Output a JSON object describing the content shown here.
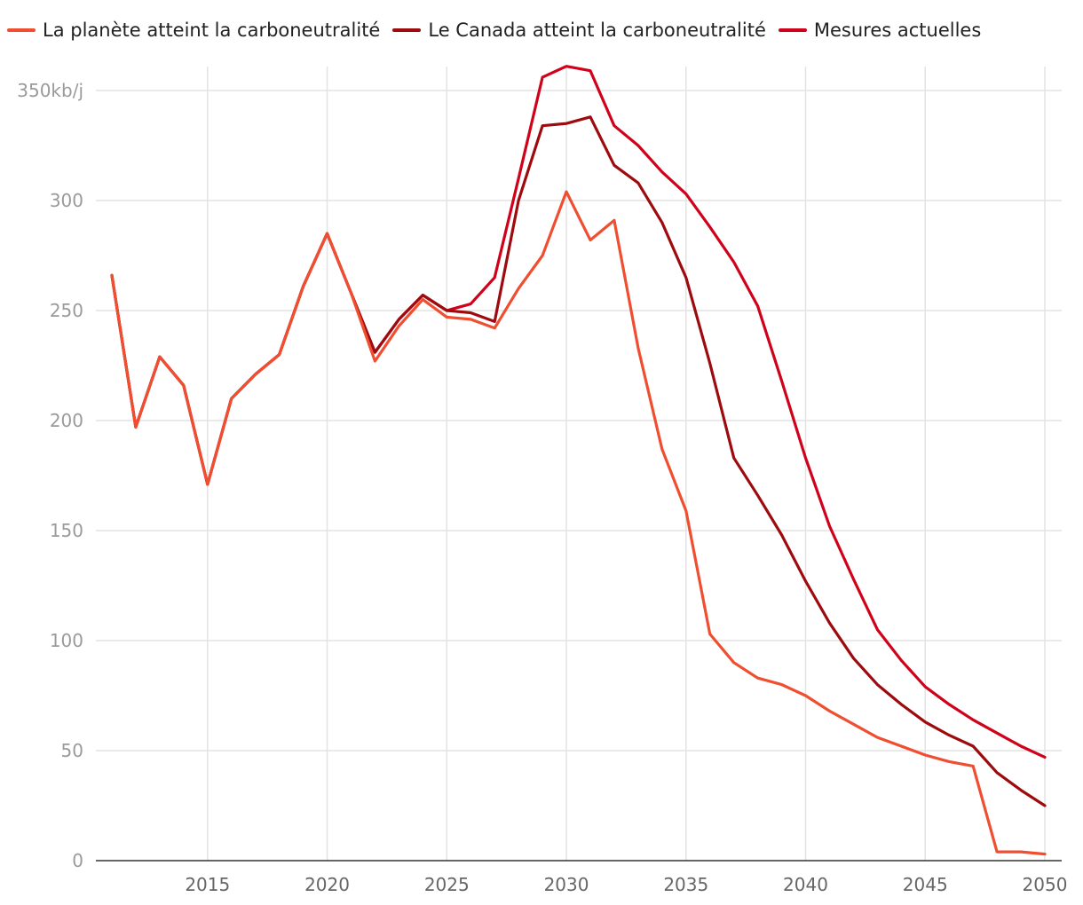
{
  "chart_data": {
    "type": "line",
    "title": "",
    "xlabel": "",
    "ylabel": "",
    "y_unit_label": "350kb/j",
    "xlim": [
      2011,
      2050
    ],
    "ylim": [
      0,
      350
    ],
    "x_ticks": [
      2015,
      2020,
      2025,
      2030,
      2035,
      2040,
      2045,
      2050
    ],
    "y_ticks": [
      0,
      50,
      100,
      150,
      200,
      250,
      300,
      350
    ],
    "y_tick_labels": [
      "0",
      "50",
      "100",
      "150",
      "200",
      "250",
      "300",
      "350kb/j"
    ],
    "grid": true,
    "legend_position": "top-left",
    "x": [
      2011,
      2012,
      2013,
      2014,
      2015,
      2016,
      2017,
      2018,
      2019,
      2020,
      2021,
      2022,
      2023,
      2024,
      2025,
      2026,
      2027,
      2028,
      2029,
      2030,
      2031,
      2032,
      2033,
      2034,
      2035,
      2036,
      2037,
      2038,
      2039,
      2040,
      2041,
      2042,
      2043,
      2044,
      2045,
      2046,
      2047,
      2048,
      2049,
      2050
    ],
    "series": [
      {
        "name": "La planète atteint la carboneutralité",
        "color": "#f04e30",
        "values": [
          266,
          197,
          229,
          216,
          171,
          210,
          221,
          230,
          261,
          285,
          258,
          227,
          243,
          255,
          247,
          246,
          242,
          260,
          275,
          304,
          282,
          291,
          233,
          187,
          159,
          103,
          90,
          83,
          80,
          75,
          68,
          62,
          56,
          52,
          48,
          45,
          43,
          4,
          4,
          3
        ]
      },
      {
        "name": "Le Canada atteint la carboneutralité",
        "color": "#9e0b0f",
        "values": [
          266,
          197,
          229,
          216,
          171,
          210,
          221,
          230,
          261,
          285,
          258,
          231,
          246,
          257,
          250,
          249,
          245,
          300,
          334,
          335,
          338,
          316,
          308,
          290,
          265,
          226,
          183,
          166,
          148,
          127,
          108,
          92,
          80,
          71,
          63,
          57,
          52,
          40,
          32,
          25
        ]
      },
      {
        "name": "Mesures actuelles",
        "color": "#d0021b",
        "values": [
          266,
          197,
          229,
          216,
          171,
          210,
          221,
          230,
          261,
          285,
          258,
          231,
          246,
          257,
          250,
          253,
          265,
          310,
          356,
          361,
          359,
          334,
          325,
          313,
          303,
          288,
          272,
          252,
          218,
          183,
          152,
          128,
          105,
          91,
          79,
          71,
          64,
          58,
          52,
          47
        ]
      }
    ]
  }
}
